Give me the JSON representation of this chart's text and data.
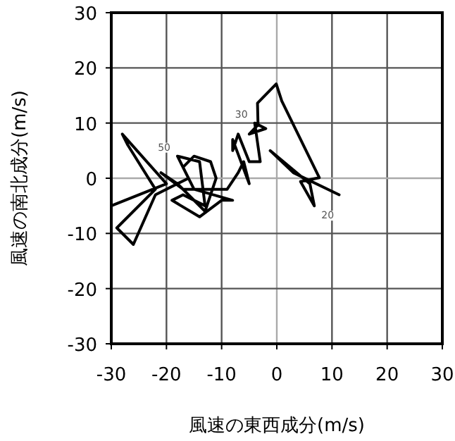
{
  "chart_data": {
    "type": "line",
    "xlabel": "風速の東西成分(m/s)",
    "ylabel": "風速の南北成分(m/s)",
    "xlim": [
      -30,
      30
    ],
    "ylim": [
      -30,
      30
    ],
    "xticks": [
      -30,
      -20,
      -10,
      0,
      10,
      20,
      30
    ],
    "yticks": [
      -30,
      -20,
      -10,
      0,
      10,
      20,
      30
    ],
    "grid": true,
    "marker": "none",
    "line_style": "solid",
    "series": [
      {
        "color": "#000000",
        "x": [
          -30,
          -20,
          -28,
          -27,
          -22,
          -29,
          -26,
          -22,
          -16,
          -18,
          -14,
          -13,
          -17,
          -19,
          -14,
          -10,
          -8,
          -15,
          -17,
          -15,
          -12,
          -11,
          -13,
          -18,
          -21,
          -17,
          -9,
          -7,
          -6,
          -5,
          -8,
          -8,
          -7,
          -5,
          -3,
          -4,
          -2,
          -5,
          -3.4,
          -3.5,
          -0.1,
          0.9,
          7.7,
          4.3,
          6.8,
          6,
          -1.2,
          3,
          11.3
        ],
        "values": [
          -5,
          -1,
          8,
          6,
          -2,
          -9,
          -12,
          -3,
          0,
          4,
          3,
          -5,
          -3,
          -4,
          -7,
          -4,
          -4,
          -2,
          2,
          4,
          3,
          0,
          -6,
          -1,
          1,
          -2,
          -2,
          1,
          3,
          -1,
          7,
          5,
          8,
          3,
          3,
          10,
          9,
          8,
          9.7,
          13.6,
          17.1,
          14,
          0.1,
          -0.6,
          -5,
          -1,
          5,
          1,
          -3
        ]
      }
    ],
    "annotations": [
      {
        "text": "50",
        "x": -18,
        "y": 4
      },
      {
        "text": "30",
        "x": -4,
        "y": 10
      },
      {
        "text": "20",
        "x": 6.8,
        "y": -5
      }
    ]
  }
}
